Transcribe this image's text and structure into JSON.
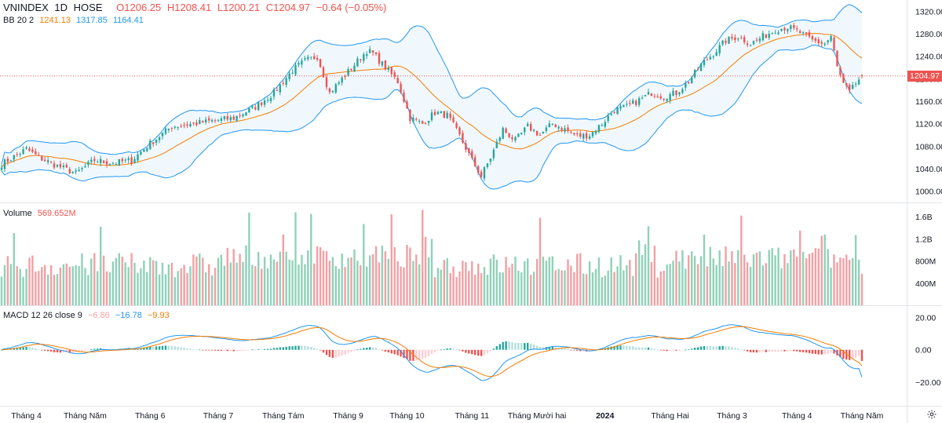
{
  "legend": {
    "symbol": "VNINDEX",
    "interval": "1D",
    "exchange": "HOSE",
    "open": "O1206.25",
    "high": "H1208.41",
    "low": "L1200.21",
    "close": "C1204.97",
    "change": "−0.64 (−0.05%)",
    "bb_label": "BB 20 2",
    "bb_mid": "1241.13",
    "bb_upper": "1317.85",
    "bb_lower": "1164.41",
    "vol_label": "Volume",
    "vol_value": "569.652M",
    "macd_label": "MACD 12 26 close 9",
    "macd_hist": "−6.86",
    "macd_line": "−16.78",
    "macd_signal": "−9.93"
  },
  "price_tag": "1204.97",
  "colors": {
    "up": "#26a69a",
    "down": "#ef5350",
    "up_vol": "#8fd1b8",
    "down_vol": "#f2a0a4",
    "bb_band": "#2196f3",
    "bb_basis": "#f57c00",
    "bb_fill": "#e3f2fd",
    "macd": "#2196f3",
    "signal": "#f57c00"
  },
  "icons": {
    "settings": "gear-icon"
  },
  "chart_data": [
    {
      "type": "candlestick",
      "title": "VNINDEX 1D HOSE",
      "ylim": [
        980,
        1340
      ],
      "y_ticks": [
        "1320.00",
        "1280.00",
        "1240.00",
        "1200.00",
        "1160.00",
        "1120.00",
        "1080.00",
        "1040.00",
        "1000.00"
      ],
      "x_ticks": [
        "Tháng 4",
        "Tháng Năm",
        "Tháng 6",
        "Tháng 7",
        "Tháng Tám",
        "Tháng 9",
        "Tháng 10",
        "Tháng 11",
        "Tháng Mười hai",
        "2024",
        "Tháng Hai",
        "Tháng 3",
        "Tháng 4",
        "Tháng Năm"
      ],
      "x_tick_index": [
        8,
        27,
        48,
        70,
        91,
        112,
        131,
        152,
        173,
        195,
        216,
        236,
        257,
        278
      ],
      "close_anchors": [
        [
          0,
          1048
        ],
        [
          8,
          1075
        ],
        [
          12,
          1060
        ],
        [
          18,
          1045
        ],
        [
          24,
          1032
        ],
        [
          30,
          1055
        ],
        [
          36,
          1050
        ],
        [
          42,
          1055
        ],
        [
          48,
          1085
        ],
        [
          55,
          1115
        ],
        [
          62,
          1120
        ],
        [
          68,
          1125
        ],
        [
          75,
          1130
        ],
        [
          82,
          1150
        ],
        [
          88,
          1175
        ],
        [
          94,
          1215
        ],
        [
          98,
          1232
        ],
        [
          102,
          1240
        ],
        [
          106,
          1175
        ],
        [
          110,
          1200
        ],
        [
          114,
          1225
        ],
        [
          118,
          1250
        ],
        [
          120,
          1245
        ],
        [
          124,
          1220
        ],
        [
          128,
          1195
        ],
        [
          132,
          1130
        ],
        [
          136,
          1120
        ],
        [
          140,
          1140
        ],
        [
          144,
          1135
        ],
        [
          148,
          1098
        ],
        [
          152,
          1055
        ],
        [
          155,
          1027
        ],
        [
          158,
          1060
        ],
        [
          162,
          1110
        ],
        [
          166,
          1090
        ],
        [
          170,
          1115
        ],
        [
          174,
          1100
        ],
        [
          178,
          1120
        ],
        [
          182,
          1110
        ],
        [
          186,
          1098
        ],
        [
          190,
          1100
        ],
        [
          194,
          1120
        ],
        [
          198,
          1145
        ],
        [
          202,
          1150
        ],
        [
          206,
          1162
        ],
        [
          210,
          1175
        ],
        [
          214,
          1168
        ],
        [
          218,
          1175
        ],
        [
          222,
          1195
        ],
        [
          226,
          1225
        ],
        [
          230,
          1245
        ],
        [
          234,
          1268
        ],
        [
          238,
          1275
        ],
        [
          242,
          1262
        ],
        [
          246,
          1275
        ],
        [
          250,
          1287
        ],
        [
          254,
          1292
        ],
        [
          258,
          1282
        ],
        [
          262,
          1268
        ],
        [
          266,
          1262
        ],
        [
          268,
          1275
        ],
        [
          270,
          1220
        ],
        [
          272,
          1190
        ],
        [
          274,
          1175
        ],
        [
          276,
          1192
        ],
        [
          278,
          1205
        ]
      ],
      "last_close": 1204.97,
      "n_bars": 279,
      "bollinger": {
        "length": 20,
        "mult": 2,
        "basis": 1241.13,
        "upper": 1317.85,
        "lower": 1164.41
      }
    },
    {
      "type": "bar",
      "title": "Volume",
      "y_ticks": [
        "1.6B",
        "1.2B",
        "800M",
        "400M"
      ],
      "ylim": [
        0,
        1.8
      ],
      "unit": "B",
      "last": 0.569652
    },
    {
      "type": "line",
      "title": "MACD 12 26 close 9",
      "y_ticks": [
        "20.00",
        "0.00",
        "−20.00"
      ],
      "ylim": [
        -34,
        26
      ],
      "series": [
        {
          "name": "MACD",
          "last": -16.78
        },
        {
          "name": "Signal",
          "last": -9.93
        },
        {
          "name": "Histogram",
          "last": -6.86
        }
      ]
    }
  ]
}
